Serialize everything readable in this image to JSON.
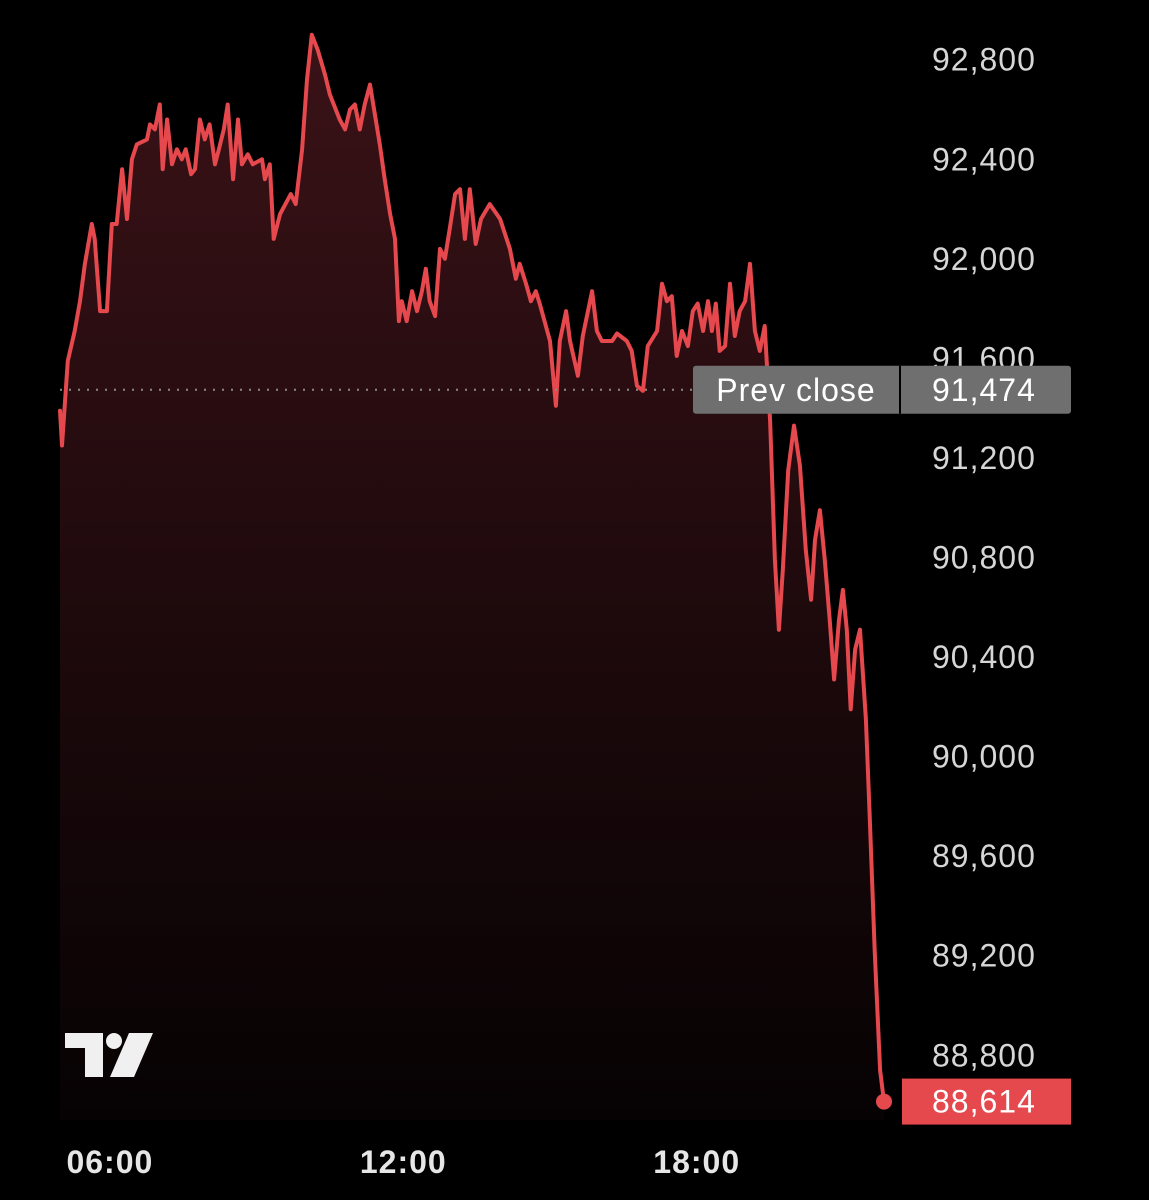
{
  "chart_data": {
    "type": "area-line",
    "x": [
      4.98,
      5.02,
      5.14,
      5.28,
      5.39,
      5.49,
      5.63,
      5.69,
      5.8,
      5.94,
      6.04,
      6.14,
      6.25,
      6.35,
      6.45,
      6.55,
      6.76,
      6.82,
      6.92,
      7.02,
      7.08,
      7.17,
      7.27,
      7.37,
      7.47,
      7.55,
      7.66,
      7.74,
      7.84,
      7.94,
      8.04,
      8.15,
      8.23,
      8.33,
      8.41,
      8.52,
      8.62,
      8.7,
      8.82,
      8.92,
      9.11,
      9.17,
      9.27,
      9.35,
      9.48,
      9.7,
      9.8,
      9.93,
      10.03,
      10.13,
      10.25,
      10.4,
      10.5,
      10.7,
      10.81,
      10.91,
      11.01,
      11.11,
      11.21,
      11.32,
      11.42,
      11.52,
      11.62,
      11.73,
      11.83,
      11.91,
      11.97,
      12.07,
      12.18,
      12.28,
      12.38,
      12.46,
      12.54,
      12.65,
      12.75,
      12.85,
      12.95,
      13.06,
      13.16,
      13.26,
      13.36,
      13.48,
      13.59,
      13.77,
      13.98,
      14.08,
      14.18,
      14.3,
      14.38,
      14.51,
      14.61,
      14.71,
      14.79,
      15.0,
      15.12,
      15.2,
      15.33,
      15.41,
      15.57,
      15.67,
      15.86,
      15.96,
      16.06,
      16.27,
      16.37,
      16.57,
      16.67,
      16.78,
      16.9,
      17.0,
      17.19,
      17.29,
      17.39,
      17.49,
      17.59,
      17.7,
      17.82,
      17.92,
      18.02,
      18.13,
      18.23,
      18.31,
      18.39,
      18.47,
      18.58,
      18.68,
      18.78,
      18.88,
      18.99,
      19.09,
      19.19,
      19.29,
      19.39,
      19.5,
      19.6,
      19.68,
      19.76,
      19.87,
      19.99,
      20.11,
      20.23,
      20.34,
      20.42,
      20.52,
      20.62,
      20.72,
      20.81,
      20.91,
      20.99,
      21.07,
      21.15,
      21.24,
      21.34,
      21.46,
      21.54,
      21.64,
      21.75,
      21.83
    ],
    "series": [
      {
        "color": "#e5484d",
        "values": [
          91390,
          91250,
          91590,
          91710,
          91830,
          91980,
          92140,
          92080,
          91790,
          91790,
          92140,
          92140,
          92360,
          92160,
          92400,
          92460,
          92480,
          92540,
          92520,
          92620,
          92360,
          92560,
          92380,
          92440,
          92400,
          92440,
          92340,
          92360,
          92560,
          92480,
          92540,
          92380,
          92440,
          92520,
          92620,
          92320,
          92560,
          92380,
          92420,
          92380,
          92400,
          92320,
          92380,
          92080,
          92180,
          92260,
          92220,
          92440,
          92720,
          92900,
          92840,
          92740,
          92660,
          92560,
          92520,
          92600,
          92620,
          92520,
          92620,
          92700,
          92580,
          92460,
          92320,
          92180,
          92080,
          91750,
          91830,
          91750,
          91870,
          91790,
          91870,
          91960,
          91830,
          91770,
          92040,
          92000,
          92120,
          92260,
          92280,
          92080,
          92280,
          92060,
          92160,
          92220,
          92160,
          92100,
          92040,
          91920,
          91980,
          91900,
          91830,
          91870,
          91820,
          91670,
          91410,
          91670,
          91790,
          91670,
          91530,
          91690,
          91870,
          91710,
          91670,
          91670,
          91700,
          91670,
          91630,
          91490,
          91470,
          91650,
          91710,
          91900,
          91830,
          91850,
          91610,
          91710,
          91650,
          91790,
          91820,
          91710,
          91830,
          91710,
          91820,
          91630,
          91650,
          91900,
          91690,
          91790,
          91830,
          91980,
          91710,
          91630,
          91730,
          91350,
          90790,
          90510,
          90750,
          91150,
          91330,
          91170,
          90830,
          90630,
          90870,
          90990,
          90790,
          90550,
          90310,
          90550,
          90670,
          90510,
          90190,
          90430,
          90510,
          90150,
          89750,
          89220,
          88740,
          88614
        ]
      }
    ],
    "xlim": [
      4.98,
      21.83
    ],
    "xticks": [
      {
        "value": 6,
        "label": "06:00"
      },
      {
        "value": 12,
        "label": "12:00"
      },
      {
        "value": 18,
        "label": "18:00"
      }
    ],
    "ylim": [
      88540,
      93040
    ],
    "yticks": [
      {
        "value": 88800,
        "label": "88,800"
      },
      {
        "value": 89200,
        "label": "89,200"
      },
      {
        "value": 89600,
        "label": "89,600"
      },
      {
        "value": 90000,
        "label": "90,000"
      },
      {
        "value": 90400,
        "label": "90,400"
      },
      {
        "value": 90800,
        "label": "90,800"
      },
      {
        "value": 91200,
        "label": "91,200"
      },
      {
        "value": 91600,
        "label": "91,600"
      },
      {
        "value": 92000,
        "label": "92,000"
      },
      {
        "value": 92400,
        "label": "92,400"
      },
      {
        "value": 92800,
        "label": "92,800"
      }
    ],
    "grid": false,
    "prev_close": {
      "label": "Prev close",
      "value": 91474,
      "value_label": "91,474"
    },
    "last_price": {
      "value": 88614,
      "label": "88,614"
    }
  }
}
